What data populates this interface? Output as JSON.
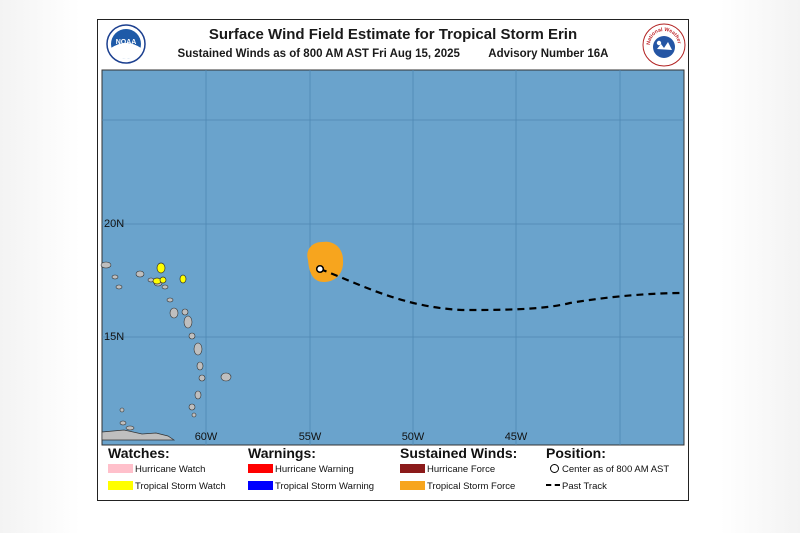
{
  "header": {
    "title": "Surface Wind Field Estimate for Tropical Storm Erin",
    "subtitle": "Sustained Winds as of 800 AM AST Fri Aug 15, 2025",
    "advisory": "Advisory Number 16A",
    "left_logo": "NOAA",
    "right_logo": "National Weather Service"
  },
  "map": {
    "lat_labels": [
      "20N",
      "15N"
    ],
    "lon_labels": [
      "60W",
      "55W",
      "50W",
      "45W"
    ],
    "colors": {
      "ocean": "#6aa3cc",
      "land": "#bfbfbf",
      "tropical_storm_force": "#f7a51e",
      "tropical_storm_watch": "#ffff00",
      "track": "#000000"
    }
  },
  "legend": {
    "watches": {
      "heading": "Watches:",
      "items": [
        {
          "label": "Hurricane Watch",
          "color": "#ffc0cb"
        },
        {
          "label": "Tropical Storm Watch",
          "color": "#ffff00"
        }
      ]
    },
    "warnings": {
      "heading": "Warnings:",
      "items": [
        {
          "label": "Hurricane Warning",
          "color": "#ff0000"
        },
        {
          "label": "Tropical Storm Warning",
          "color": "#0000ff"
        }
      ]
    },
    "winds": {
      "heading": "Sustained Winds:",
      "items": [
        {
          "label": "Hurricane Force",
          "color": "#8b1a1a"
        },
        {
          "label": "Tropical Storm Force",
          "color": "#f7a51e"
        }
      ]
    },
    "position": {
      "heading": "Position:",
      "items": [
        {
          "label": "Center as of 800 AM AST",
          "icon": "center-circle-icon"
        },
        {
          "label": "Past Track",
          "icon": "dashed-line-icon"
        }
      ]
    }
  }
}
